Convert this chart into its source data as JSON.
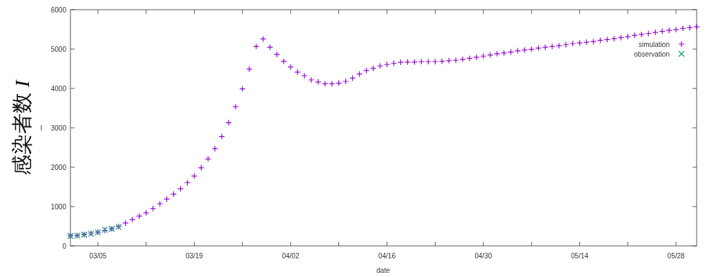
{
  "chart_data": {
    "type": "scatter",
    "xlabel": "date",
    "ylabel": "感染者数 I",
    "annotations": [
      "I"
    ],
    "x": [
      "--03-01",
      "--03-02",
      "--03-03",
      "--03-04",
      "--03-05",
      "--03-06",
      "--03-07",
      "--03-08",
      "--03-09",
      "--03-10",
      "--03-11",
      "--03-12",
      "--03-13",
      "--03-14",
      "--03-15",
      "--03-16",
      "--03-17",
      "--03-18",
      "--03-19",
      "--03-20",
      "--03-21",
      "--03-22",
      "--03-23",
      "--03-24",
      "--03-25",
      "--03-26",
      "--03-27",
      "--03-28",
      "--03-29",
      "--03-30",
      "--03-31",
      "--04-01",
      "--04-02",
      "--04-03",
      "--04-04",
      "--04-05",
      "--04-06",
      "--04-07",
      "--04-08",
      "--04-09",
      "--04-10",
      "--04-11",
      "--04-12",
      "--04-13",
      "--04-14",
      "--04-15",
      "--04-16",
      "--04-17",
      "--04-18",
      "--04-19",
      "--04-20",
      "--04-21",
      "--04-22",
      "--04-23",
      "--04-24",
      "--04-25",
      "--04-26",
      "--04-27",
      "--04-28",
      "--04-29",
      "--04-30",
      "--05-01",
      "--05-02",
      "--05-03",
      "--05-04",
      "--05-05",
      "--05-06",
      "--05-07",
      "--05-08",
      "--05-09",
      "--05-10",
      "--05-11",
      "--05-12",
      "--05-13",
      "--05-14",
      "--05-15",
      "--05-16",
      "--05-17",
      "--05-18",
      "--05-19",
      "--05-20",
      "--05-21",
      "--05-22",
      "--05-23",
      "--05-24",
      "--05-25",
      "--05-26",
      "--05-27",
      "--05-28",
      "--05-29",
      "--05-30",
      "--05-31"
    ],
    "series": [
      {
        "name": "simulation",
        "color": "#9400d3",
        "marker": "cross",
        "values": [
          260,
          265,
          290,
          320,
          350,
          395,
          435,
          495,
          580,
          670,
          755,
          840,
          950,
          1070,
          1190,
          1315,
          1450,
          1605,
          1775,
          1985,
          2210,
          2470,
          2780,
          3130,
          3535,
          3990,
          4490,
          5065,
          5255,
          5045,
          4865,
          4690,
          4545,
          4415,
          4320,
          4215,
          4165,
          4120,
          4120,
          4135,
          4180,
          4260,
          4365,
          4455,
          4510,
          4570,
          4610,
          4640,
          4665,
          4670,
          4670,
          4680,
          4680,
          4680,
          4690,
          4705,
          4715,
          4740,
          4765,
          4790,
          4820,
          4850,
          4880,
          4900,
          4925,
          4955,
          4975,
          4995,
          5025,
          5045,
          5065,
          5085,
          5110,
          5140,
          5155,
          5175,
          5190,
          5220,
          5240,
          5265,
          5290,
          5315,
          5350,
          5370,
          5395,
          5425,
          5450,
          5475,
          5495,
          5525,
          5545,
          5565
        ]
      },
      {
        "name": "observation",
        "color": "#009e73",
        "marker": "x",
        "x": [
          "--03-01",
          "--03-02",
          "--03-03",
          "--03-04",
          "--03-05",
          "--03-06",
          "--03-07",
          "--03-08"
        ],
        "values": [
          255,
          260,
          285,
          310,
          345,
          410,
          435,
          480
        ]
      }
    ],
    "xlim": [
      "--03-01",
      "--05-31"
    ],
    "xticks": [
      {
        "value": "--03-05",
        "label": "03/05"
      },
      {
        "value": "--03-12",
        "label": null
      },
      {
        "value": "--03-19",
        "label": "03/19"
      },
      {
        "value": "--03-26",
        "label": null
      },
      {
        "value": "--04-02",
        "label": "04/02"
      },
      {
        "value": "--04-09",
        "label": null
      },
      {
        "value": "--04-16",
        "label": "04/16"
      },
      {
        "value": "--04-23",
        "label": null
      },
      {
        "value": "--04-30",
        "label": "04/30"
      },
      {
        "value": "--05-07",
        "label": null
      },
      {
        "value": "--05-14",
        "label": "05/14"
      },
      {
        "value": "--05-21",
        "label": null
      },
      {
        "value": "--05-28",
        "label": "05/28"
      }
    ],
    "ylim": [
      0,
      6000
    ],
    "yticks": [
      0,
      1000,
      2000,
      3000,
      4000,
      5000,
      6000
    ],
    "grid": false,
    "legend": "top right"
  }
}
